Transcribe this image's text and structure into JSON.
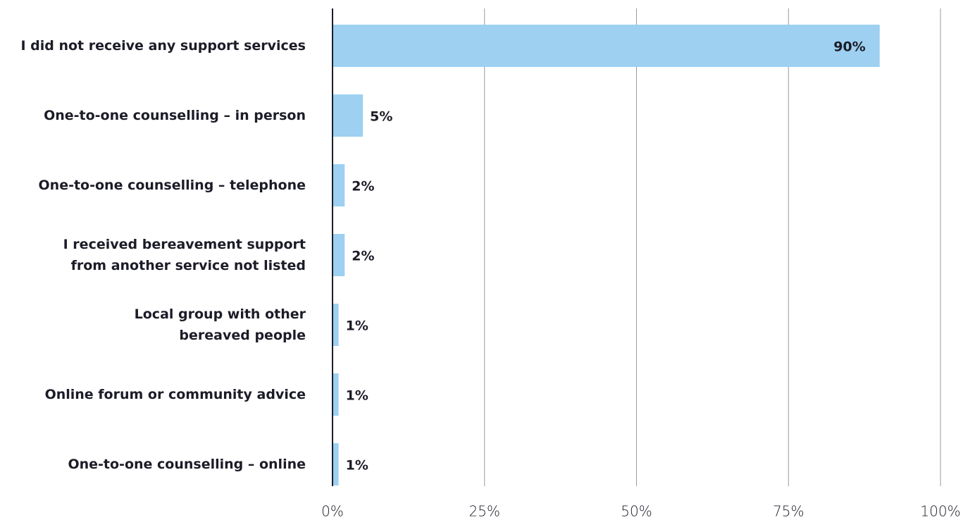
{
  "chart_data": {
    "type": "hbar",
    "categories": [
      "I did not receive any support services",
      "One-to-one counselling – in person",
      "One-to-one counselling – telephone",
      "I received bereavement support\nfrom another service not listed",
      "Local group with other\nbereaved people",
      "Online forum or community advice",
      "One-to-one counselling – online"
    ],
    "values": [
      90,
      5,
      2,
      2,
      1,
      1,
      1
    ],
    "value_labels": [
      "90%",
      "5%",
      "2%",
      "2%",
      "1%",
      "1%",
      "1%"
    ],
    "color": "#9dd0f1",
    "xlim": [
      0,
      100
    ],
    "xticks": [
      {
        "value": 0,
        "label": "0%"
      },
      {
        "value": 25,
        "label": "25%"
      },
      {
        "value": 50,
        "label": "50%"
      },
      {
        "value": 75,
        "label": "75%"
      },
      {
        "value": 100,
        "label": "100%"
      }
    ],
    "grid": true
  }
}
